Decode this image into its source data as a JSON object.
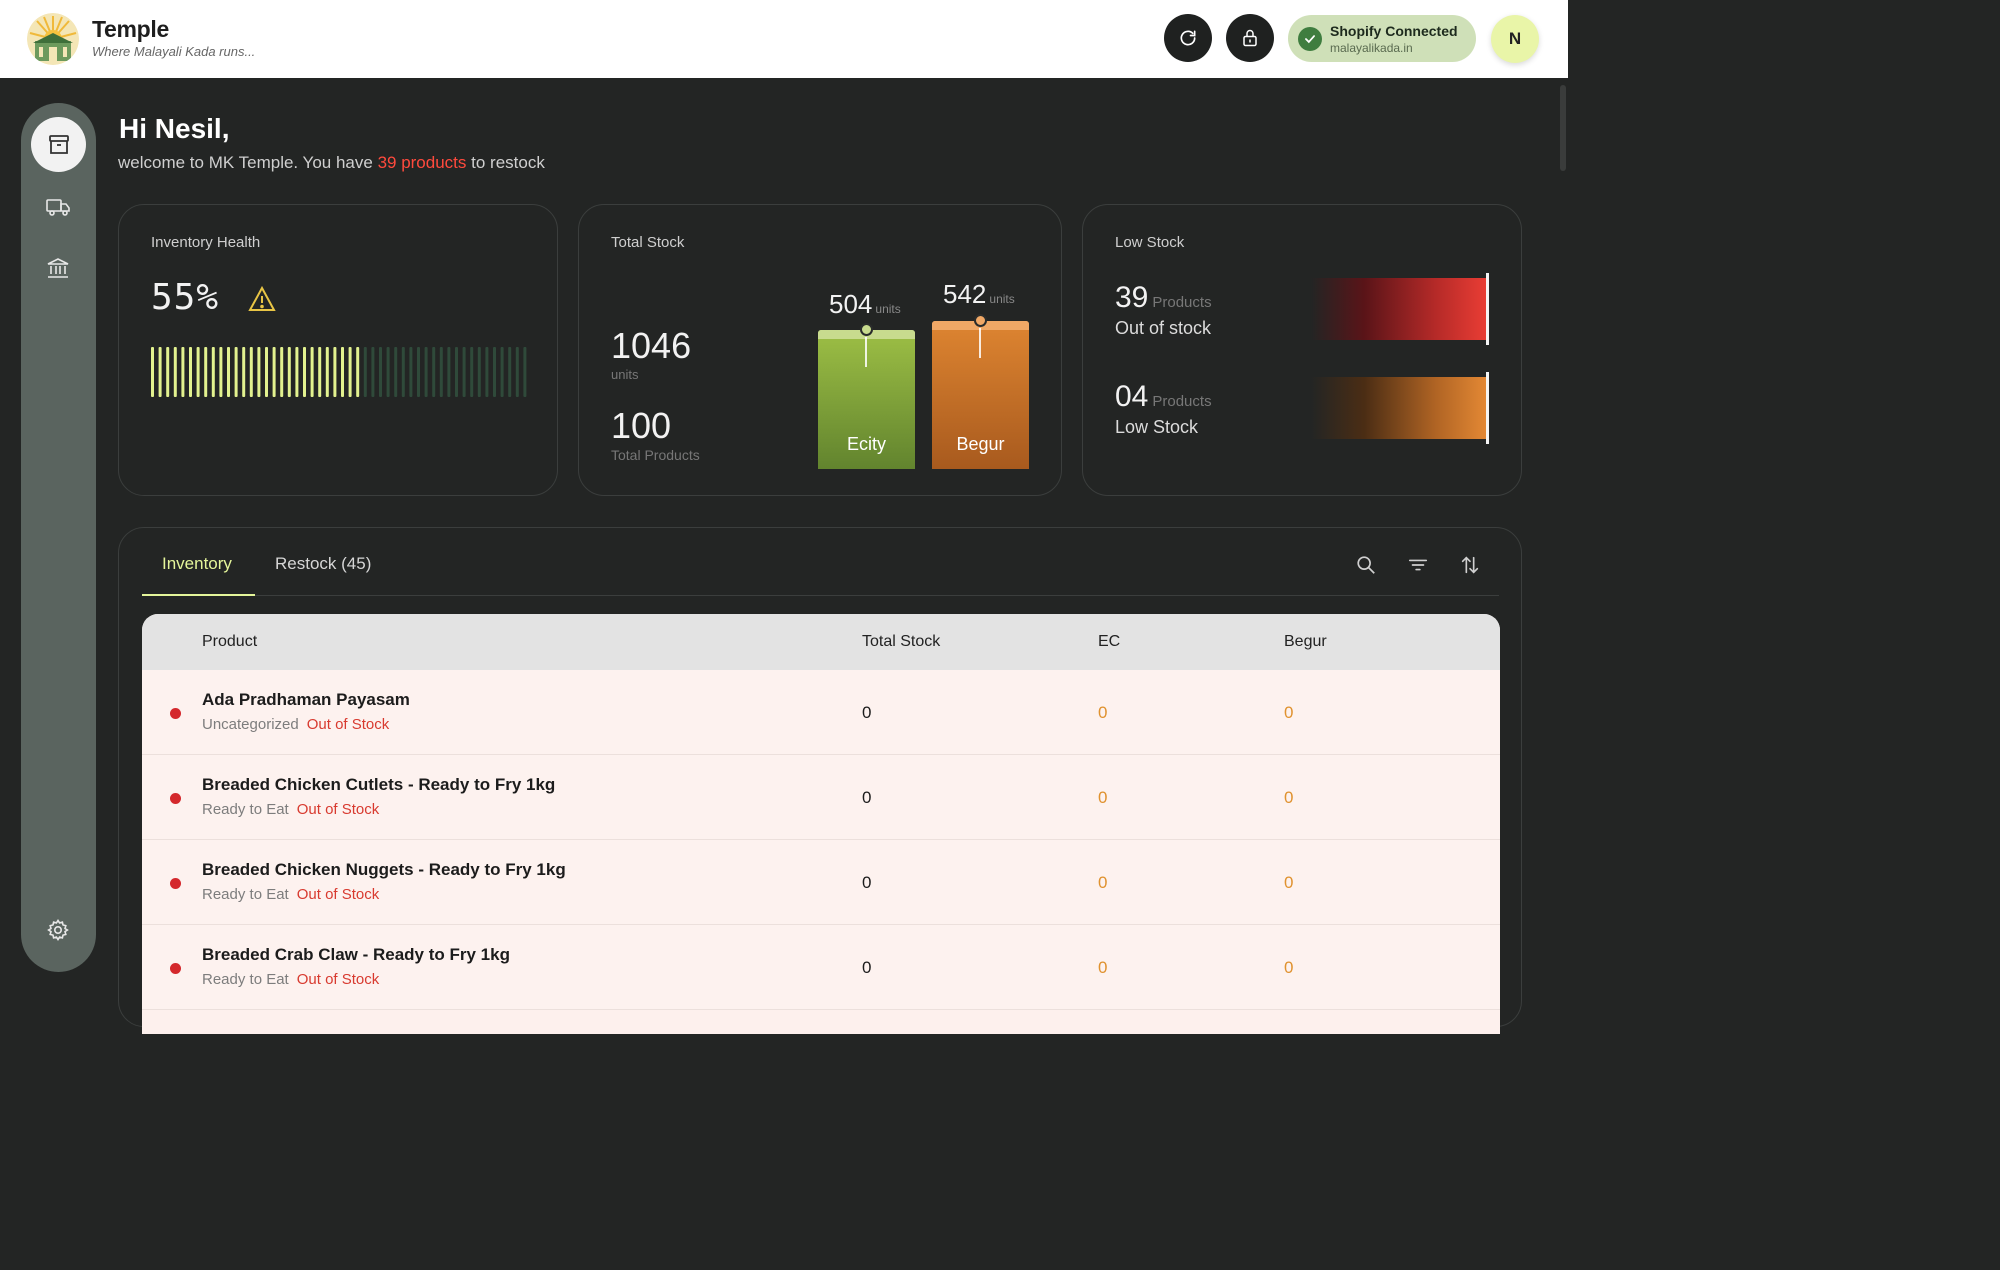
{
  "brand": {
    "title": "Temple",
    "tagline": "Where Malayali Kada runs..."
  },
  "header": {
    "refresh_icon": "refresh-icon",
    "lock_icon": "lock-icon",
    "shopify_status": "Shopify Connected",
    "shopify_domain": "malayalikada.in",
    "avatar_initial": "N"
  },
  "sidebar": {
    "items": [
      "archive-icon",
      "truck-icon",
      "bank-icon",
      "gear-icon"
    ]
  },
  "greeting": {
    "hello": "Hi Nesil,",
    "prefix": "welcome to MK Temple. You have ",
    "highlight": "39 products",
    "suffix": " to restock"
  },
  "health": {
    "title": "Inventory Health",
    "value": "55%",
    "percent": 55,
    "warning_icon": "warning-icon"
  },
  "total_stock": {
    "title": "Total Stock",
    "units_value": "1046",
    "units_label": "units",
    "products_value": "100",
    "products_label": "Total Products",
    "locations": [
      {
        "name": "Ecity",
        "value": "504",
        "unit": "units"
      },
      {
        "name": "Begur",
        "value": "542",
        "unit": "units"
      }
    ]
  },
  "low_stock": {
    "title": "Low Stock",
    "items": [
      {
        "count": "39",
        "unit": "Products",
        "label": "Out of stock"
      },
      {
        "count": "04",
        "unit": "Products",
        "label": "Low Stock"
      }
    ]
  },
  "tabs": {
    "inventory": "Inventory",
    "restock": "Restock (45)"
  },
  "tools": [
    "search-icon",
    "filter-icon",
    "sort-icon"
  ],
  "table": {
    "headers": {
      "product": "Product",
      "total": "Total Stock",
      "ec": "EC",
      "begur": "Begur"
    },
    "rows": [
      {
        "name": "Ada Pradhaman Payasam",
        "category": "Uncategorized",
        "status": "Out of Stock",
        "total": "0",
        "ec": "0",
        "begur": "0"
      },
      {
        "name": "Breaded Chicken Cutlets - Ready to Fry 1kg",
        "category": "Ready to Eat",
        "status": "Out of Stock",
        "total": "0",
        "ec": "0",
        "begur": "0"
      },
      {
        "name": "Breaded Chicken Nuggets - Ready to Fry 1kg",
        "category": "Ready to Eat",
        "status": "Out of Stock",
        "total": "0",
        "ec": "0",
        "begur": "0"
      },
      {
        "name": "Breaded Crab Claw - Ready to Fry 1kg",
        "category": "Ready to Eat",
        "status": "Out of Stock",
        "total": "0",
        "ec": "0",
        "begur": "0"
      }
    ]
  },
  "colors": {
    "accent": "#e4f59a",
    "alert": "#ff4a3d",
    "orange": "#e0922f",
    "green_bar": "#8cac3a",
    "orange_bar": "#d77a2b"
  }
}
